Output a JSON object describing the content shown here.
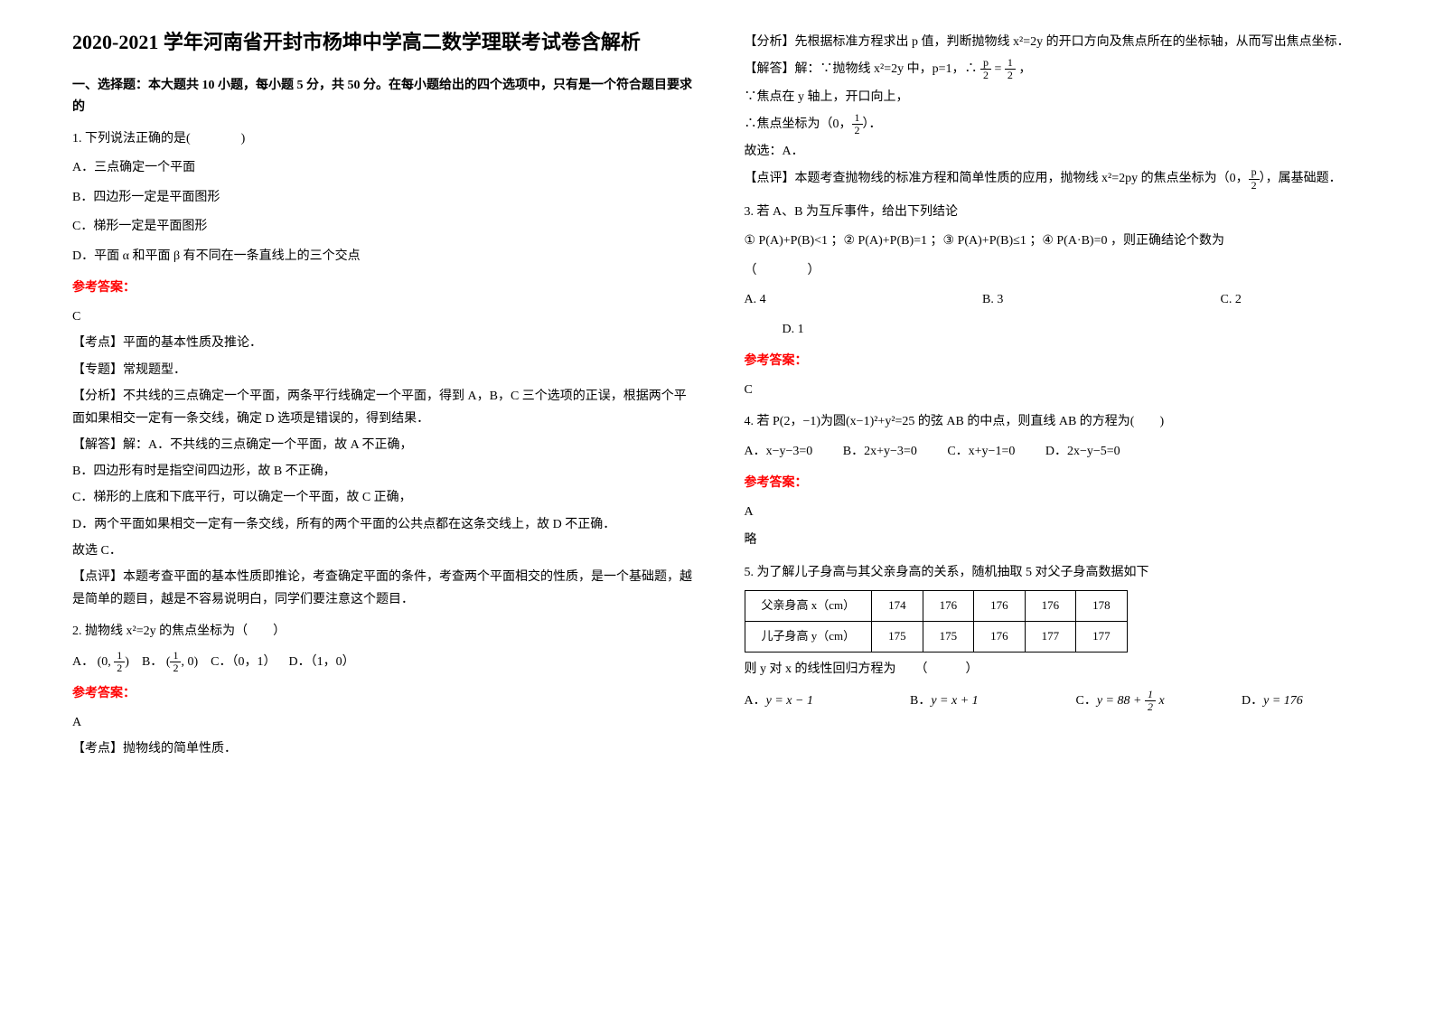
{
  "title": "2020-2021 学年河南省开封市杨坤中学高二数学理联考试卷含解析",
  "section1_head": "一、选择题：本大题共 10 小题，每小题 5 分，共 50 分。在每小题给出的四个选项中，只有是一个符合题目要求的",
  "q1": {
    "stem": "1. 下列说法正确的是(　　　　)",
    "A": "A．三点确定一个平面",
    "B": "B．四边形一定是平面图形",
    "C": "C．梯形一定是平面图形",
    "D": "D．平面 α 和平面 β 有不同在一条直线上的三个交点",
    "ans_label": "参考答案：",
    "ans_letter": "C",
    "a1": "【考点】平面的基本性质及推论．",
    "a2": "【专题】常规题型．",
    "a3": "【分析】不共线的三点确定一个平面，两条平行线确定一个平面，得到 A，B，C 三个选项的正误，根据两个平面如果相交一定有一条交线，确定 D 选项是错误的，得到结果．",
    "a4": "【解答】解：A．不共线的三点确定一个平面，故 A 不正确，",
    "a5": "B．四边形有时是指空间四边形，故 B 不正确，",
    "a6": "C．梯形的上底和下底平行，可以确定一个平面，故 C 正确，",
    "a7": "D．两个平面如果相交一定有一条交线，所有的两个平面的公共点都在这条交线上，故 D 不正确．",
    "a8": "故选 C．",
    "a9": "【点评】本题考查平面的基本性质即推论，考查确定平面的条件，考查两个平面相交的性质，是一个基础题，越是简单的题目，越是不容易说明白，同学们要注意这个题目．"
  },
  "q2": {
    "stem": "2. 抛物线 x²=2y 的焦点坐标为（　　）",
    "A_pre": "A．",
    "A_paren_open": "(0, ",
    "A_paren_close": ")",
    "B_pre": "B．",
    "B_paren_open": "(",
    "B_paren_close": ", 0)",
    "C": "C．（0，1）",
    "D": "D．（1，0）",
    "ans_label": "参考答案：",
    "ans_letter": "A",
    "a1": "【考点】抛物线的简单性质．",
    "a2_pre": "【分析】先根据标准方程求出 p 值，判断抛物线 x²=2y 的开口方向及焦点所在的坐标轴，从而写出焦点坐标．",
    "a3_pre": "【解答】解：∵抛物线 x²=2y 中，p=1，∴",
    "a3_mid": " = ",
    "a3_post": "，",
    "a4": "∵焦点在 y 轴上，开口向上，",
    "a5_pre": "∴焦点坐标为（0，",
    "a5_post": "）．",
    "a6": "故选：A．",
    "a7_pre": "【点评】本题考查抛物线的标准方程和简单性质的应用，抛物线 x²=2py 的焦点坐标为（0，",
    "a7_post": "），属基础题．",
    "frac_p2_n": "p",
    "frac_p2_d": "2",
    "frac_12_n": "1",
    "frac_12_d": "2"
  },
  "q3": {
    "stem": "3. 若 A、B 为互斥事件，给出下列结论",
    "opts": "① P(A)+P(B)<1 ；② P(A)+P(B)=1 ；③ P(A)+P(B)≤1 ；④ P(A·B)=0 ，则正确结论个数为",
    "paren": "（　　　　）",
    "A": "A. 4",
    "B": "B. 3",
    "C": "C. 2",
    "D": "D. 1",
    "ans_label": "参考答案：",
    "ans_letter": "C"
  },
  "q4": {
    "stem": "4. 若 P(2，−1)为圆(x−1)²+y²=25 的弦 AB 的中点，则直线 AB 的方程为(　　)",
    "A": "A．x−y−3=0",
    "B": "B．2x+y−3=0",
    "C": "C．x+y−1=0",
    "D": "D．2x−y−5=0",
    "ans_label": "参考答案：",
    "ans_letter": "A",
    "note": "略"
  },
  "q5": {
    "stem": "5. 为了解儿子身高与其父亲身高的关系，随机抽取 5 对父子身高数据如下",
    "rowX_label": "父亲身高 x（cm）",
    "rowY_label": "儿子身高 y（cm）",
    "x": [
      "174",
      "176",
      "176",
      "176",
      "178"
    ],
    "y": [
      "175",
      "175",
      "176",
      "177",
      "177"
    ],
    "reg_stem": "则 y 对 x 的线性回归方程为　　（　　　）",
    "A_pre": "A．",
    "A_eq": "y = x − 1",
    "B_pre": "B．",
    "B_eq": "y = x + 1",
    "C_pre": "C．",
    "C_eq_left": "y = 88 + ",
    "C_eq_right": " x",
    "C_frac_n": "1",
    "C_frac_d": "2",
    "D_pre": "D．",
    "D_eq": "y = 176"
  }
}
